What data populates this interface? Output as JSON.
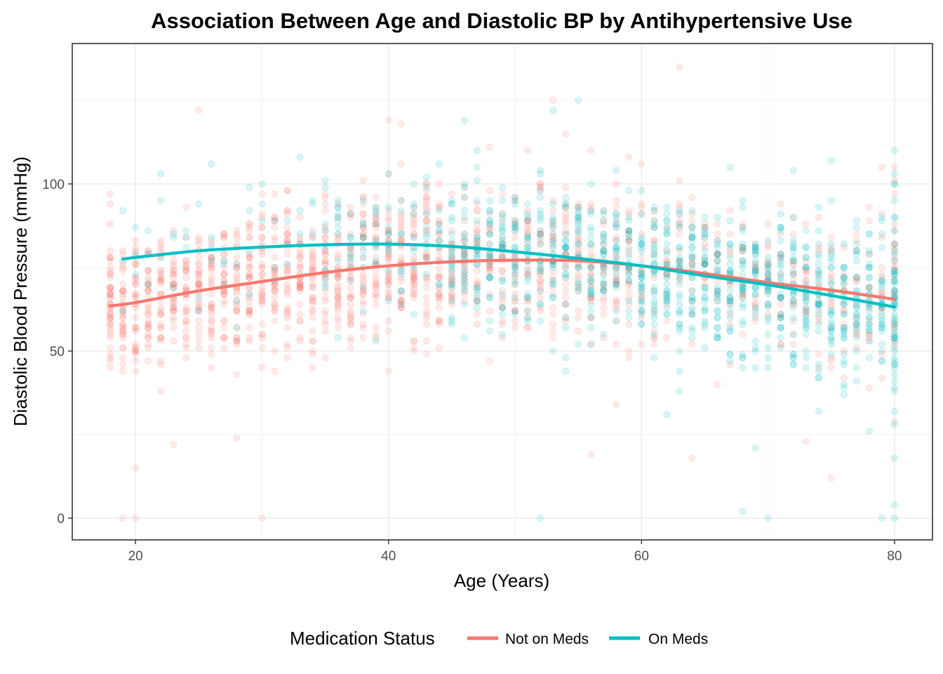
{
  "chart_data": {
    "type": "scatter",
    "title": "Association Between Age and  Diastolic BP by Antihypertensive Use",
    "xlabel": "Age (Years)",
    "ylabel": "Diastolic Blood Pressure (mmHg)",
    "xlim": [
      15,
      83
    ],
    "ylim": [
      -6.5,
      142
    ],
    "x_ticks": [
      20,
      40,
      60,
      80
    ],
    "y_ticks": [
      0,
      50,
      100
    ],
    "grid": true,
    "legend": {
      "title": "Medication Status",
      "position": "bottom"
    },
    "series": [
      {
        "name": "Not on Meds",
        "color": "#F8766D",
        "point_alpha": 0.15,
        "age_range": [
          18,
          80
        ],
        "points_sample": [
          [
            18,
            97
          ],
          [
            18,
            88
          ],
          [
            18,
            47
          ],
          [
            19,
            0
          ],
          [
            20,
            0
          ],
          [
            20,
            15
          ],
          [
            25,
            122
          ],
          [
            30,
            0
          ],
          [
            40,
            119
          ],
          [
            41,
            118
          ],
          [
            48,
            111
          ],
          [
            53,
            125
          ],
          [
            54,
            115
          ],
          [
            56,
            19
          ],
          [
            60,
            106
          ],
          [
            63,
            135
          ],
          [
            64,
            18
          ],
          [
            73,
            23
          ],
          [
            75,
            12
          ],
          [
            79,
            105
          ],
          [
            80,
            29
          ]
        ],
        "trend": {
          "x": [
            18,
            20,
            25,
            30,
            35,
            40,
            45,
            50,
            55,
            60,
            65,
            70,
            75,
            80
          ],
          "y": [
            63.5,
            64.5,
            68,
            70.8,
            73.5,
            75.5,
            76.7,
            77.2,
            77,
            75.5,
            73.2,
            70.5,
            68.2,
            65.5
          ]
        }
      },
      {
        "name": "On Meds",
        "color": "#00BFC4",
        "point_alpha": 0.15,
        "age_range": [
          19,
          80
        ],
        "points_sample": [
          [
            26,
            106
          ],
          [
            29,
            99
          ],
          [
            33,
            108
          ],
          [
            40,
            103
          ],
          [
            47,
            110
          ],
          [
            52,
            0
          ],
          [
            53,
            122
          ],
          [
            55,
            125
          ],
          [
            58,
            104
          ],
          [
            62,
            31
          ],
          [
            63,
            38
          ],
          [
            67,
            105
          ],
          [
            68,
            2
          ],
          [
            69,
            21
          ],
          [
            70,
            0
          ],
          [
            75,
            107
          ],
          [
            78,
            26
          ],
          [
            79,
            0
          ],
          [
            80,
            110
          ],
          [
            80,
            0
          ],
          [
            80,
            4
          ],
          [
            80,
            18
          ]
        ],
        "trend": {
          "x": [
            19,
            20,
            25,
            30,
            35,
            40,
            45,
            50,
            55,
            60,
            65,
            70,
            75,
            80
          ],
          "y": [
            77.5,
            78,
            80,
            81.1,
            81.8,
            82,
            81.3,
            79.7,
            77.7,
            75.5,
            72.5,
            69.8,
            66.6,
            63.2
          ]
        }
      }
    ]
  }
}
